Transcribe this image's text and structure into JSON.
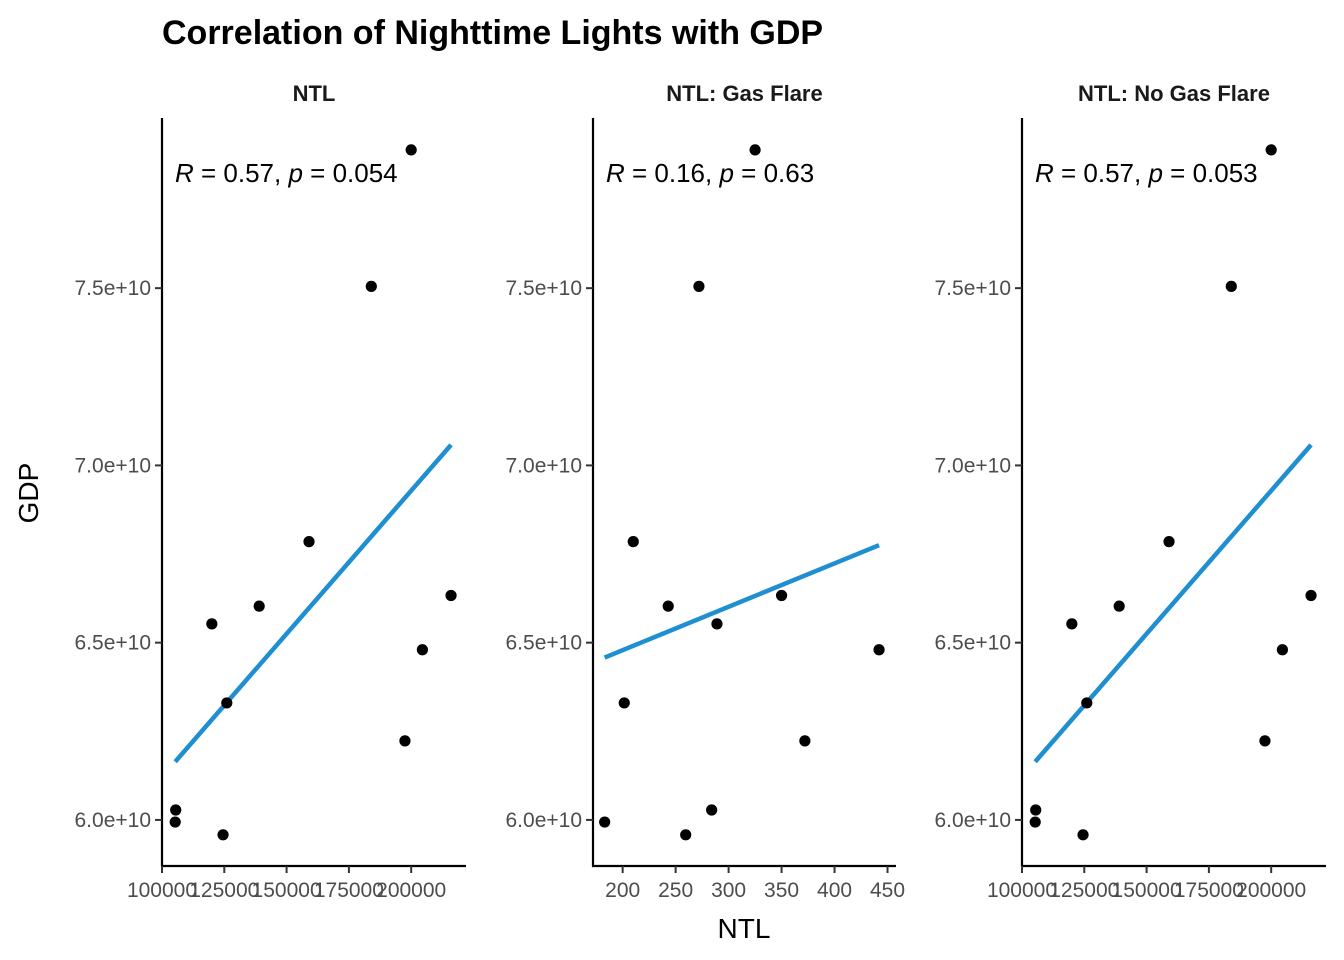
{
  "chart_data": {
    "type": "scatter",
    "title": "Correlation of Nighttime Lights with GDP",
    "xlabel": "NTL",
    "ylabel": "GDP",
    "colors": {
      "point": "#000000",
      "fit_line": "#1f8fd1"
    },
    "grid": false,
    "y_ticks": [
      {
        "value": 60000000000,
        "label": "6.0e+10"
      },
      {
        "value": 65000000000,
        "label": "6.5e+10"
      },
      {
        "value": 70000000000,
        "label": "7.0e+10"
      },
      {
        "value": 75000000000,
        "label": "7.5e+10"
      }
    ],
    "ylim": [
      58700000000,
      79800000000
    ],
    "panels": [
      {
        "strip": "NTL",
        "annotation": {
          "r_symbol": "R",
          "r_text": " = 0.57, ",
          "p_symbol": "p",
          "p_text": " = 0.054"
        },
        "xlim": [
          100000,
          222000
        ],
        "x_ticks": [
          {
            "value": 100000,
            "label": "100000"
          },
          {
            "value": 125000,
            "label": "125000"
          },
          {
            "value": 150000,
            "label": "150000"
          },
          {
            "value": 175000,
            "label": "175000"
          },
          {
            "value": 200000,
            "label": "200000"
          }
        ],
        "points": [
          {
            "x": 105500,
            "y": 60280000000
          },
          {
            "x": 105300,
            "y": 59940000000
          },
          {
            "x": 120000,
            "y": 65530000000
          },
          {
            "x": 124500,
            "y": 59580000000
          },
          {
            "x": 126000,
            "y": 63300000000
          },
          {
            "x": 139000,
            "y": 66030000000
          },
          {
            "x": 159000,
            "y": 67850000000
          },
          {
            "x": 184000,
            "y": 75050000000
          },
          {
            "x": 197500,
            "y": 62230000000
          },
          {
            "x": 200000,
            "y": 78900000000
          },
          {
            "x": 204500,
            "y": 64800000000
          },
          {
            "x": 216000,
            "y": 66330000000
          }
        ],
        "fit": {
          "x0": 105300,
          "y0": 61640000000,
          "x1": 216000,
          "y1": 70580000000
        }
      },
      {
        "strip": "NTL: Gas Flare",
        "annotation": {
          "r_symbol": "R",
          "r_text": " = 0.16, ",
          "p_symbol": "p",
          "p_text": " = 0.63"
        },
        "xlim": [
          172000,
          458000
        ],
        "x_ticks": [
          {
            "value": 200,
            "label": "200"
          },
          {
            "value": 250,
            "label": "250"
          },
          {
            "value": 300,
            "label": "300"
          },
          {
            "value": 350,
            "label": "350"
          },
          {
            "value": 400,
            "label": "400"
          },
          {
            "value": 450,
            "label": "450"
          }
        ],
        "x_tick_scale": 1000,
        "points": [
          {
            "x": 183000,
            "y": 59940000000
          },
          {
            "x": 201500,
            "y": 63300000000
          },
          {
            "x": 210000,
            "y": 67850000000
          },
          {
            "x": 243000,
            "y": 66030000000
          },
          {
            "x": 259500,
            "y": 59580000000
          },
          {
            "x": 272000,
            "y": 75050000000
          },
          {
            "x": 284000,
            "y": 60280000000
          },
          {
            "x": 289000,
            "y": 65530000000
          },
          {
            "x": 325000,
            "y": 78900000000
          },
          {
            "x": 350000,
            "y": 66330000000
          },
          {
            "x": 372000,
            "y": 62230000000
          },
          {
            "x": 442000,
            "y": 64800000000
          }
        ],
        "fit": {
          "x0": 183000,
          "y0": 64580000000,
          "x1": 442000,
          "y1": 67750000000
        }
      },
      {
        "strip": "NTL: No Gas Flare",
        "annotation": {
          "r_symbol": "R",
          "r_text": " = 0.57, ",
          "p_symbol": "p",
          "p_text": " = 0.053"
        },
        "xlim": [
          100000,
          222000
        ],
        "x_ticks": [
          {
            "value": 100000,
            "label": "100000"
          },
          {
            "value": 125000,
            "label": "125000"
          },
          {
            "value": 150000,
            "label": "150000"
          },
          {
            "value": 175000,
            "label": "175000"
          },
          {
            "value": 200000,
            "label": "200000"
          }
        ],
        "points": [
          {
            "x": 105500,
            "y": 60280000000
          },
          {
            "x": 105300,
            "y": 59940000000
          },
          {
            "x": 120000,
            "y": 65530000000
          },
          {
            "x": 124500,
            "y": 59580000000
          },
          {
            "x": 126000,
            "y": 63300000000
          },
          {
            "x": 139000,
            "y": 66030000000
          },
          {
            "x": 159000,
            "y": 67850000000
          },
          {
            "x": 184000,
            "y": 75050000000
          },
          {
            "x": 197500,
            "y": 62230000000
          },
          {
            "x": 200000,
            "y": 78900000000
          },
          {
            "x": 204500,
            "y": 64800000000
          },
          {
            "x": 216000,
            "y": 66330000000
          }
        ],
        "fit": {
          "x0": 105300,
          "y0": 61640000000,
          "x1": 216000,
          "y1": 70580000000
        }
      }
    ]
  }
}
